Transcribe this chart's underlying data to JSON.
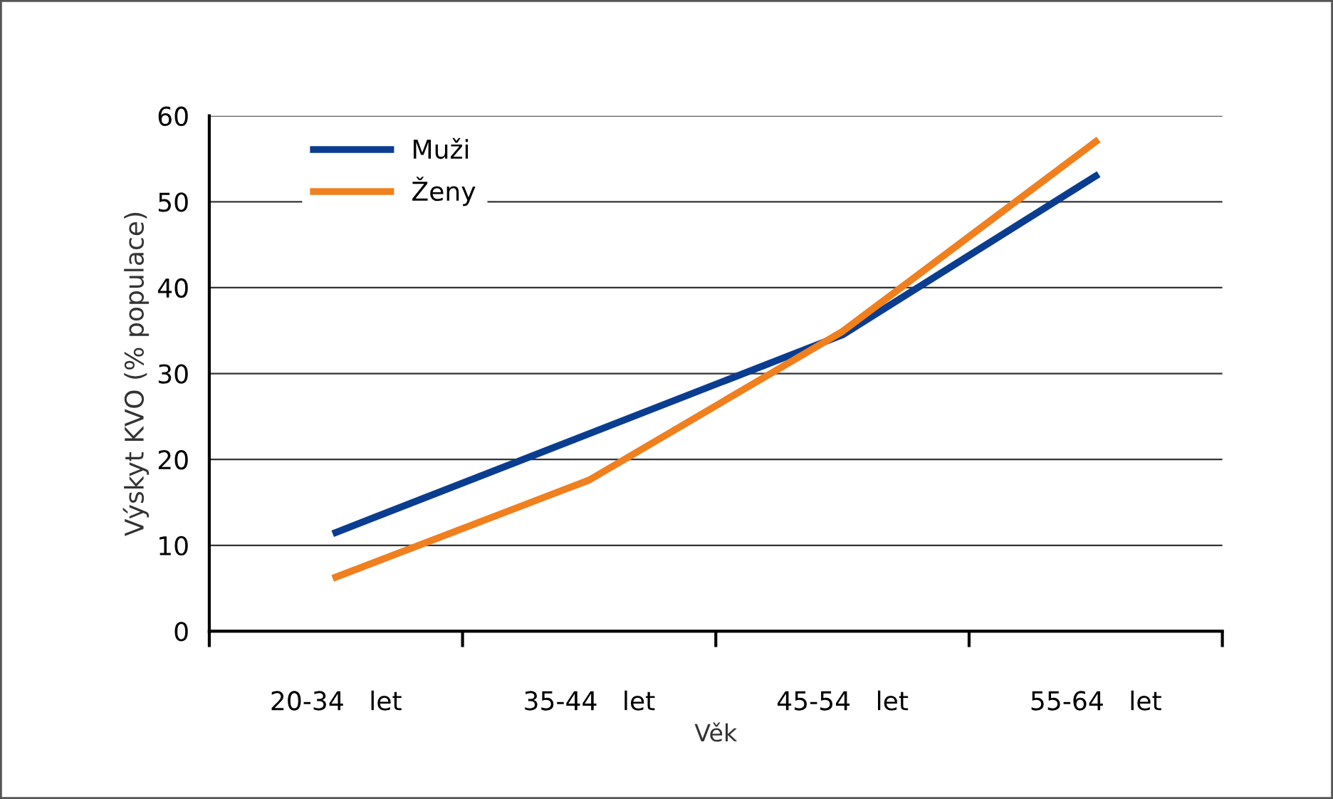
{
  "chart_data": {
    "type": "line",
    "xlabel": "Věk",
    "ylabel": "Výskyt KVO (% populace)",
    "categories": [
      "20-34   let",
      "35-44   let",
      "45-54   let",
      "55-64   let"
    ],
    "series": [
      {
        "name": "Muži",
        "color": "#0a3d8f",
        "values": [
          11.5,
          23,
          34.5,
          53
        ]
      },
      {
        "name": "Ženy",
        "color": "#f07f1e",
        "values": [
          6.3,
          17.6,
          34.9,
          57
        ]
      }
    ],
    "ylim": [
      0,
      60
    ],
    "yticks": [
      0,
      10,
      20,
      30,
      40,
      50,
      60
    ],
    "grid": "y",
    "legend": "top left",
    "marker": "none",
    "line_style": "solid"
  }
}
